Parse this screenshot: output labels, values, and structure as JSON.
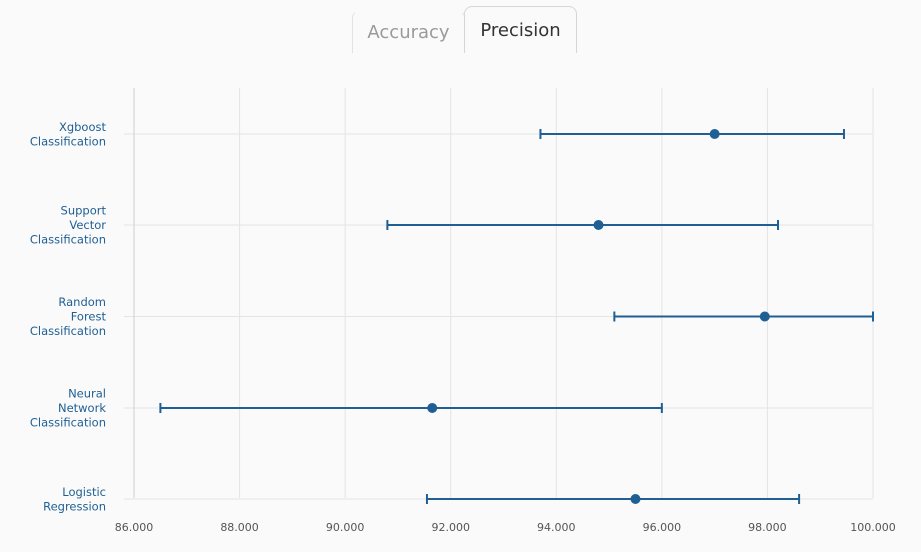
{
  "tabs": [
    {
      "label": "Accuracy",
      "active": false
    },
    {
      "label": "Precision",
      "active": true
    }
  ],
  "chart_data": {
    "type": "scatter",
    "orientation": "horizontal",
    "categories": [
      [
        "Xgboost",
        "Classification"
      ],
      [
        "Support",
        "Vector",
        "Classification"
      ],
      [
        "Random",
        "Forest",
        "Classification"
      ],
      [
        "Neural",
        "Network",
        "Classification"
      ],
      [
        "Logistic",
        "Regression"
      ]
    ],
    "series": [
      {
        "point_estimates": [
          97.0,
          94.8,
          97.95,
          91.65,
          95.5
        ],
        "lower": [
          93.7,
          90.8,
          95.1,
          86.5,
          91.55
        ],
        "upper": [
          99.45,
          98.2,
          100.0,
          96.0,
          98.6
        ]
      }
    ],
    "xlim": [
      86.0,
      100.0
    ],
    "xticks": [
      "86.000",
      "88.000",
      "90.000",
      "92.000",
      "94.000",
      "96.000",
      "98.000",
      "100.000"
    ],
    "grid": true,
    "color": "#1f5f94"
  }
}
